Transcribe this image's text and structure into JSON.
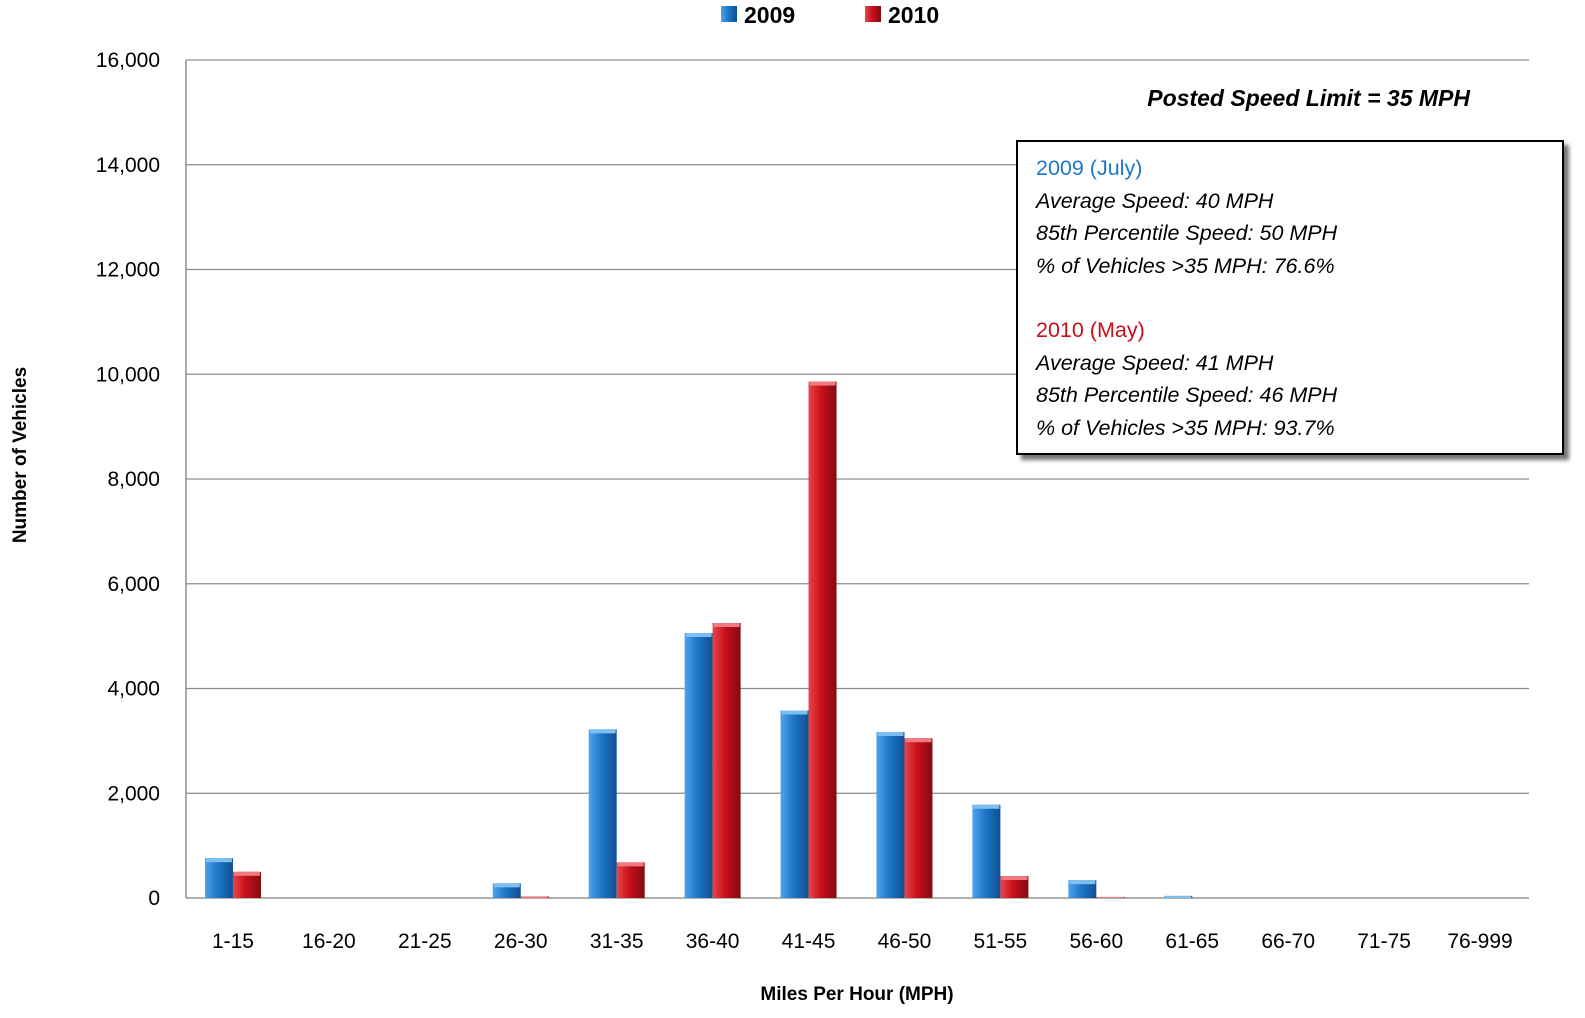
{
  "chart_data": {
    "type": "bar",
    "categories": [
      "1-15",
      "16-20",
      "21-25",
      "26-30",
      "31-35",
      "36-40",
      "41-45",
      "46-50",
      "51-55",
      "56-60",
      "61-65",
      "66-70",
      "71-75",
      "76-999"
    ],
    "series": [
      {
        "name": "2009",
        "color": "#1f77c9",
        "values": [
          760,
          0,
          0,
          280,
          3220,
          5060,
          3580,
          3170,
          1780,
          340,
          40,
          0,
          0,
          0
        ]
      },
      {
        "name": "2010",
        "color": "#c8101a",
        "values": [
          500,
          0,
          0,
          30,
          680,
          5250,
          9860,
          3050,
          420,
          20,
          0,
          0,
          0,
          0
        ]
      }
    ],
    "xlabel": "Miles Per Hour (MPH)",
    "ylabel": "Number of Vehicles",
    "ylim": [
      0,
      16000
    ],
    "yticks": [
      "0",
      "2,000",
      "4,000",
      "6,000",
      "8,000",
      "10,000",
      "12,000",
      "14,000",
      "16,000"
    ],
    "grid": true,
    "legend_position": "top-center",
    "annotation": "Posted Speed Limit = 35 MPH",
    "info_box": {
      "y2009": {
        "header": "2009 (July)",
        "header_color": "#1f77c9",
        "lines": [
          "Average Speed: 40 MPH",
          "85th Percentile Speed: 50 MPH",
          "% of Vehicles >35 MPH: 76.6%"
        ]
      },
      "y2010": {
        "header": "2010 (May)",
        "header_color": "#c8101a",
        "lines": [
          "Average Speed: 41 MPH",
          "85th Percentile Speed: 46 MPH",
          "% of Vehicles >35 MPH: 93.7%"
        ]
      }
    }
  }
}
